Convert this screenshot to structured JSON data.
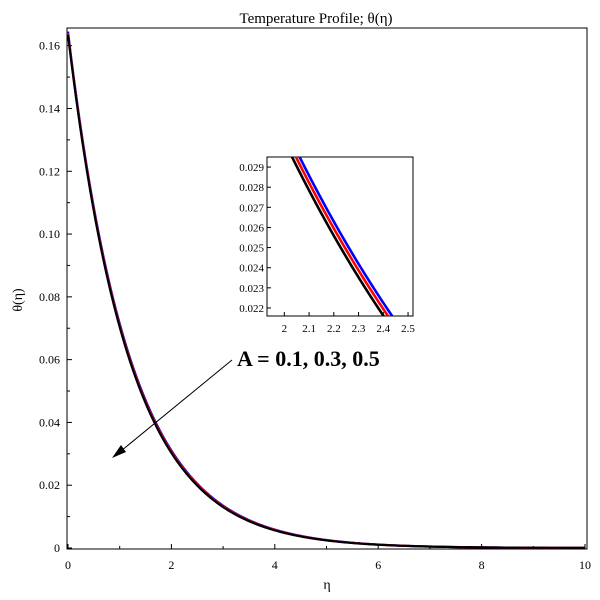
{
  "chart_data": {
    "type": "line",
    "title": "Temperature Profile; θ(η)",
    "xlabel": "η",
    "ylabel": "θ(η)",
    "xlim": [
      0,
      10
    ],
    "ylim": [
      0,
      0.165
    ],
    "xticks": [
      "0",
      "2",
      "4",
      "6",
      "8",
      "10"
    ],
    "yticks": [
      "0",
      "0.02",
      "0.04",
      "0.06",
      "0.08",
      "0.10",
      "0.12",
      "0.14",
      "0.16"
    ],
    "grid": false,
    "series": [
      {
        "color": "#0000ff",
        "theta0": 0.1645,
        "k": 0.8335,
        "parameter": 0.1
      },
      {
        "color": "#ff0000",
        "theta0": 0.164,
        "k": 0.838,
        "parameter": 0.3
      },
      {
        "color": "#000000",
        "theta0": 0.1635,
        "k": 0.843,
        "parameter": 0.5
      }
    ],
    "annotation": {
      "text": "A = 0.1, 0.3, 0.5",
      "arrow_direction": "toward lower-left, increasing A"
    },
    "inset": {
      "xlim": [
        1.93,
        2.52
      ],
      "ylim": [
        0.0216,
        0.0295
      ],
      "xticks": [
        "2",
        "2.1",
        "2.2",
        "2.3",
        "2.4",
        "2.5"
      ],
      "yticks": [
        "0.022",
        "0.023",
        "0.024",
        "0.025",
        "0.026",
        "0.027",
        "0.028",
        "0.029"
      ]
    }
  }
}
